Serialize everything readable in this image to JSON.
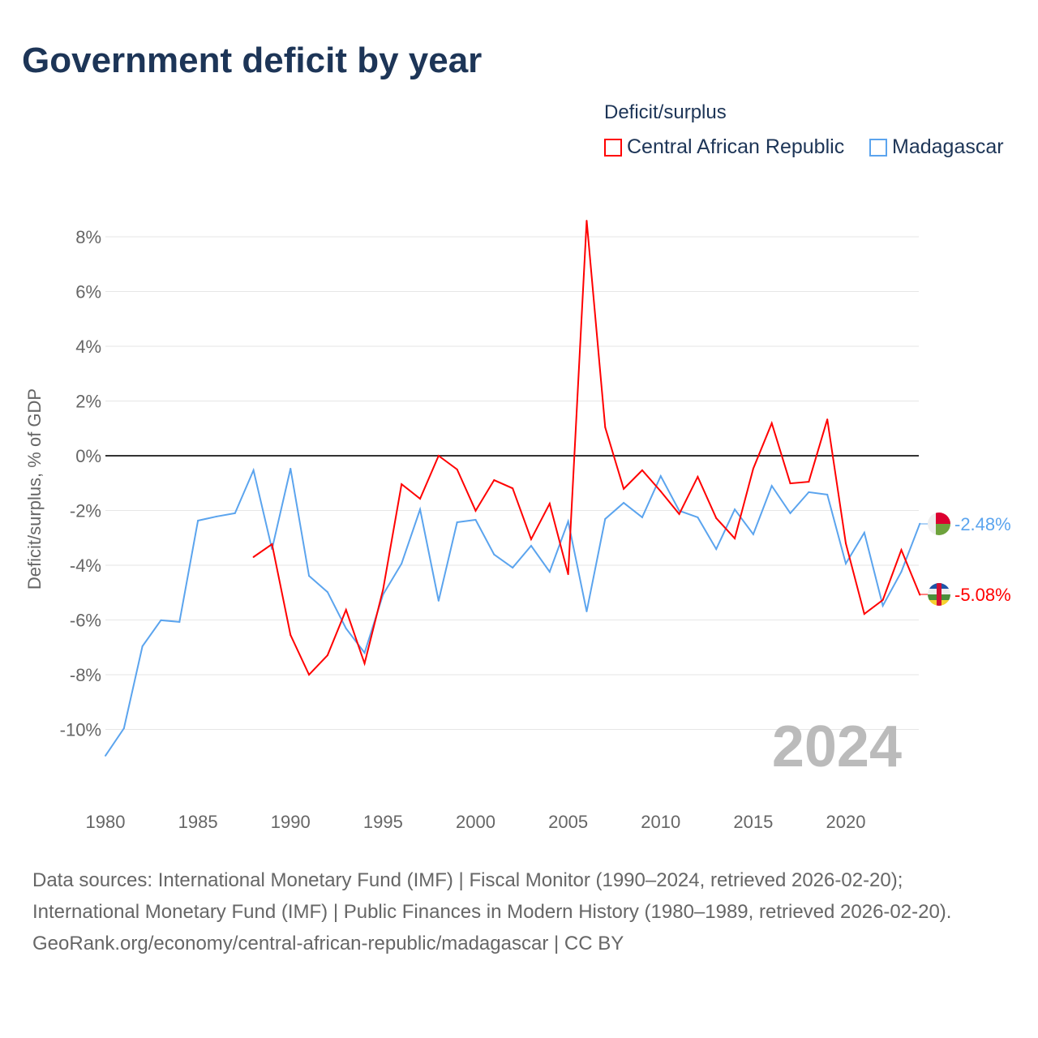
{
  "chart_data": {
    "type": "line",
    "title": "Government deficit by year",
    "ylabel": "Deficit/surplus, % of GDP",
    "xlabel": "",
    "ylim": [
      -11.5,
      8.8
    ],
    "xlim": [
      1980,
      2024.3
    ],
    "yticks": [
      8,
      6,
      4,
      2,
      0,
      -2,
      -4,
      -6,
      -8,
      -10
    ],
    "ytick_labels": [
      "8%",
      "6%",
      "4%",
      "2%",
      "0%",
      "-2%",
      "-4%",
      "-6%",
      "-8%",
      "-10%"
    ],
    "xticks": [
      1980,
      1985,
      1990,
      1995,
      2000,
      2005,
      2010,
      2015,
      2020
    ],
    "xtick_labels": [
      "1980",
      "1985",
      "1990",
      "1995",
      "2000",
      "2005",
      "2010",
      "2015",
      "2020"
    ],
    "legend_title": "Deficit/surplus",
    "legend_position": "top-right",
    "year_watermark": "2024",
    "series": [
      {
        "name": "Central African Republic",
        "color": "#ff0000",
        "end_label": "-5.08%",
        "start_year": 1988,
        "values": [
          -3.7,
          -3.23,
          -6.55,
          -8.0,
          -7.29,
          -5.63,
          -7.59,
          -4.89,
          -1.04,
          -1.57,
          0.0,
          -0.5,
          -2.01,
          -0.89,
          -1.19,
          -3.05,
          -1.75,
          -4.33,
          8.59,
          1.04,
          -1.21,
          -0.53,
          -1.3,
          -2.13,
          -0.77,
          -2.28,
          -3.02,
          -0.47,
          1.19,
          -1.01,
          -0.95,
          1.33,
          -3.2,
          -5.78,
          -5.27,
          -3.44,
          -5.08
        ]
      },
      {
        "name": "Madagascar",
        "color": "#5ba4ee",
        "end_label": "-2.48%",
        "start_year": 1980,
        "values": [
          -10.96,
          -9.96,
          -6.96,
          -6.01,
          -6.07,
          -2.37,
          -2.22,
          -2.1,
          -0.53,
          -3.41,
          -0.47,
          -4.39,
          -4.98,
          -6.31,
          -7.2,
          -5.07,
          -3.94,
          -1.96,
          -5.3,
          -2.43,
          -2.34,
          -3.61,
          -4.09,
          -3.29,
          -4.24,
          -2.4,
          -5.69,
          -2.31,
          -1.72,
          -2.25,
          -0.74,
          -2.01,
          -2.25,
          -3.41,
          -1.96,
          -2.87,
          -1.1,
          -2.1,
          -1.33,
          -1.42,
          -3.94,
          -2.81,
          -5.48,
          -4.24,
          -2.48
        ]
      }
    ]
  },
  "footer": {
    "sources": "Data sources: International Monetary Fund (IMF) | Fiscal Monitor (1990–2024, retrieved 2026-02-20); International Monetary Fund (IMF) | Public Finances in Modern History (1980–1989, retrieved 2026-02-20).",
    "credit": "GeoRank.org/economy/central-african-republic/madagascar | CC BY"
  }
}
